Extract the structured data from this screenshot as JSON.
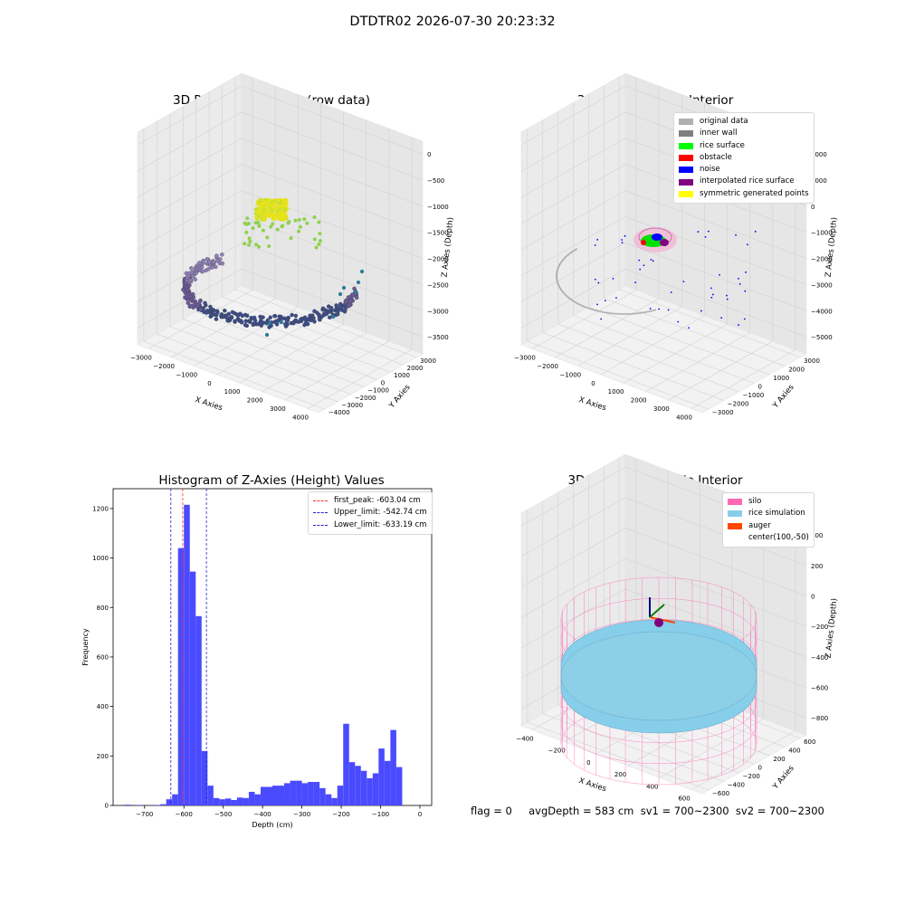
{
  "suptitle": "DTDTR02 2026-07-30 20:23:32",
  "status_text": "flag = 0     avgDepth = 583 cm  sv1 = 700~2300  sv2 = 700~2300",
  "chart_data": [
    {
      "type": "scatter",
      "title": "3D Plot of Silo Interior(row data)",
      "xlabel": "X Axies",
      "ylabel": "Y Axies",
      "zlabel": "Z Axies (Depth)",
      "x_ticks": [
        "−3000",
        "−2000",
        "−1000",
        "0",
        "1000",
        "2000",
        "3000",
        "4000"
      ],
      "y_ticks": [
        "−4000",
        "−3000",
        "−2000",
        "−1000",
        "0",
        "1000",
        "2000",
        "3000"
      ],
      "z_ticks": [
        "0",
        "−500",
        "−1000",
        "−1500",
        "−2000",
        "−2500",
        "−3000",
        "−3500"
      ],
      "colormap": "viridis (by depth)"
    },
    {
      "type": "scatter",
      "title": "3D classify of Silo Interior",
      "xlabel": "X Axies",
      "ylabel": "Y Axies",
      "zlabel": "Z Axies (Depth)",
      "x_ticks": [
        "−3000",
        "−2000",
        "−1000",
        "0",
        "1000",
        "2000",
        "3000",
        "4000"
      ],
      "y_ticks": [
        "−3000",
        "−2000",
        "−1000",
        "0",
        "1000",
        "2000",
        "3000"
      ],
      "z_ticks": [
        "2000",
        "1000",
        "0",
        "−1000",
        "−2000",
        "−3000",
        "−4000",
        "−5000"
      ],
      "legend": [
        {
          "label": "original data",
          "color": "#b0b0b0"
        },
        {
          "label": "inner wall",
          "color": "#808080"
        },
        {
          "label": "rice surface",
          "color": "#00ff00"
        },
        {
          "label": "obstacle",
          "color": "#ff0000"
        },
        {
          "label": "noise",
          "color": "#0000ff"
        },
        {
          "label": "interpolated rice surface",
          "color": "#800080"
        },
        {
          "label": "symmetric generated points",
          "color": "#ffff00"
        }
      ]
    },
    {
      "type": "bar",
      "title": "Histogram of Z-Axies (Height) Values",
      "xlabel": "Depth (cm)",
      "ylabel": "Frequency",
      "xlim": [
        -780,
        30
      ],
      "ylim": [
        0,
        1280
      ],
      "x_ticks": [
        -700,
        -600,
        -500,
        -400,
        -300,
        -200,
        -100,
        0
      ],
      "y_ticks": [
        0,
        200,
        400,
        600,
        800,
        1000,
        1200
      ],
      "bar_color": "#4a4aff",
      "bin_width": 15,
      "bin_starts": [
        -750,
        -735,
        -720,
        -705,
        -690,
        -675,
        -660,
        -645,
        -630,
        -615,
        -600,
        -585,
        -570,
        -555,
        -540,
        -525,
        -510,
        -495,
        -480,
        -465,
        -450,
        -435,
        -420,
        -405,
        -390,
        -375,
        -360,
        -345,
        -330,
        -315,
        -300,
        -285,
        -270,
        -255,
        -240,
        -225,
        -210,
        -195,
        -180,
        -165,
        -150,
        -135,
        -120,
        -105,
        -90,
        -75,
        -60,
        -45,
        -30,
        -15
      ],
      "values": [
        3,
        0,
        2,
        0,
        0,
        2,
        5,
        25,
        45,
        1040,
        1215,
        945,
        765,
        220,
        80,
        30,
        25,
        28,
        22,
        32,
        30,
        55,
        45,
        75,
        75,
        80,
        80,
        90,
        100,
        100,
        90,
        95,
        95,
        70,
        45,
        30,
        80,
        330,
        175,
        160,
        140,
        110,
        130,
        230,
        180,
        305,
        155,
        0,
        0,
        0
      ],
      "lines": [
        {
          "label": "first_peak: -603.04 cm",
          "x": -603.04,
          "color": "#ff3030"
        },
        {
          "label": "Upper_limit: -542.74 cm",
          "x": -542.74,
          "color": "#2020d0"
        },
        {
          "label": "Lower_limit: -633.19 cm",
          "x": -633.19,
          "color": "#2020d0"
        }
      ]
    },
    {
      "type": "surface",
      "title": "3D simulation of Silo Interior",
      "xlabel": "X Axies",
      "ylabel": "Y Axies",
      "zlabel": "Z Axies (Depth)",
      "x_ticks": [
        "−400",
        "−200",
        "0",
        "200",
        "400",
        "600"
      ],
      "y_ticks": [
        "−600",
        "−400",
        "−200",
        "0",
        "200",
        "400",
        "600"
      ],
      "z_ticks": [
        "400",
        "200",
        "0",
        "−200",
        "−400",
        "−600",
        "−800"
      ],
      "legend": [
        {
          "label": "silo",
          "color": "#ff69b4"
        },
        {
          "label": "rice simulation",
          "color": "#87ceeb"
        },
        {
          "label": "auger",
          "color": "#ff4500"
        },
        {
          "label": "center(100,-50)",
          "color": ""
        }
      ]
    }
  ]
}
